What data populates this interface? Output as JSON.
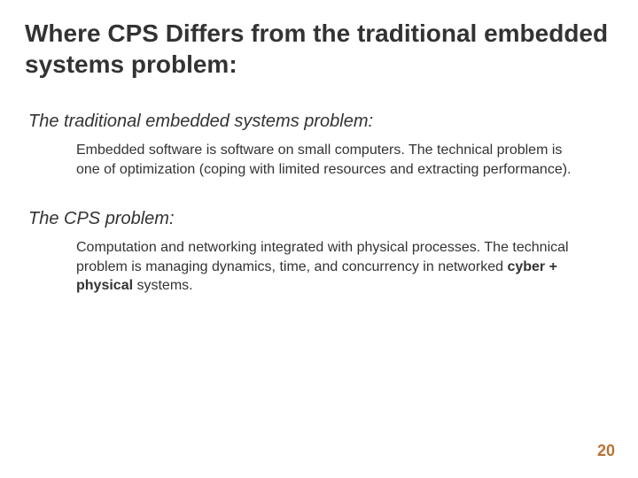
{
  "title": "Where CPS Differs from the traditional embedded systems problem:",
  "sections": [
    {
      "heading": "The traditional embedded systems problem:",
      "body_before": "Embedded software is software on small computers. The technical problem is one of optimization (coping with limited resources and extracting performance).",
      "body_bold": "",
      "body_after": ""
    },
    {
      "heading": "The CPS problem:",
      "body_before": "Computation and networking integrated with physical processes. The technical problem is managing dynamics, time, and concurrency in networked ",
      "body_bold": "cyber + physical",
      "body_after": " systems."
    }
  ],
  "page_number": "20",
  "colors": {
    "text": "#333333",
    "background": "#ffffff",
    "pagenum": "#b87333"
  },
  "fonts": {
    "title_size": 28,
    "subhead_size": 20,
    "body_size": 16,
    "pagenum_size": 18
  }
}
